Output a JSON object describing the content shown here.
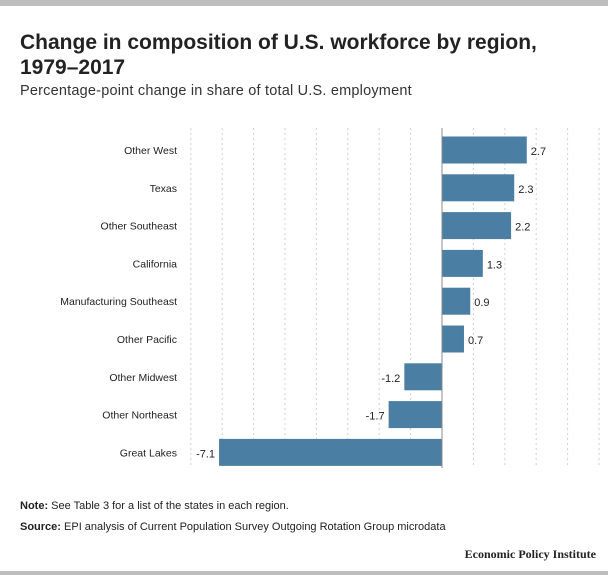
{
  "title": "Change in composition of U.S. workforce by region, 1979–2017",
  "subtitle": "Percentage-point change in share of total U.S. employment",
  "note_label": "Note:",
  "note_text": " See Table 3 for a list of the states in each region.",
  "source_label": "Source:",
  "source_text": " EPI analysis of Current Population Survey Outgoing Rotation Group microdata",
  "brand": "Economic Policy Institute",
  "colors": {
    "bar": "#4a7fa3",
    "grid": "#cfcfcf",
    "zero_line": "#888888"
  },
  "chart_data": {
    "type": "bar",
    "orientation": "horizontal",
    "categories": [
      "Other West",
      "Texas",
      "Other Southeast",
      "California",
      "Manufacturing Southeast",
      "Other Pacific",
      "Other Midwest",
      "Other Northeast",
      "Great Lakes"
    ],
    "values": [
      2.7,
      2.3,
      2.2,
      1.3,
      0.9,
      0.7,
      -1.2,
      -1.7,
      -7.1
    ],
    "labels": [
      "2.7",
      "2.3",
      "2.2",
      "1.3",
      "0.9",
      "0.7",
      "-1.2",
      "-1.7",
      "-7.1"
    ],
    "xlim": [
      -8,
      5
    ],
    "grid_values": [
      -8,
      -7,
      -6,
      -5,
      -4,
      -3,
      -2,
      -1,
      0,
      1,
      2,
      3,
      4,
      5
    ],
    "grid": true
  }
}
